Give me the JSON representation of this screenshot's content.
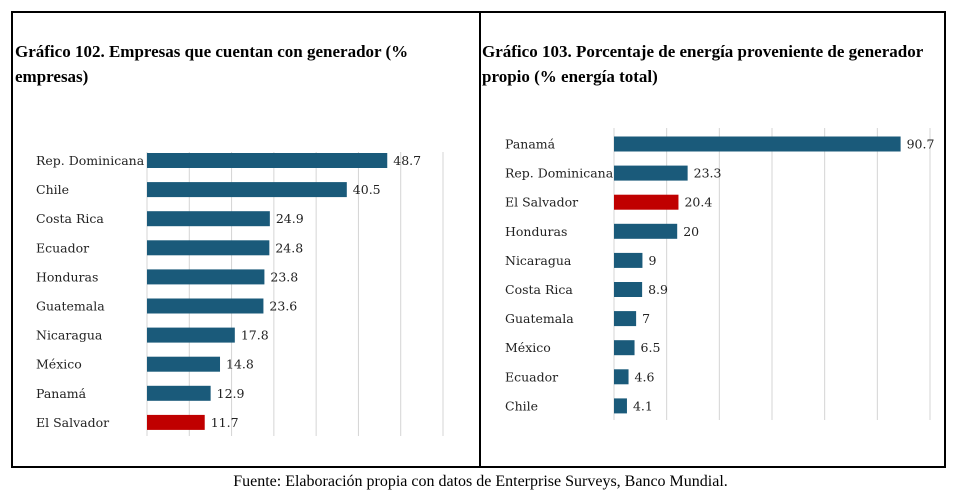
{
  "chart_data": [
    {
      "type": "bar",
      "orientation": "horizontal",
      "title": "Gráfico 102. Empresas que cuentan con generador (% empresas)",
      "categories": [
        "Rep. Dominicana",
        "Chile",
        "Costa Rica",
        "Ecuador",
        "Honduras",
        "Guatemala",
        "Nicaragua",
        "México",
        "Panamá",
        "El Salvador"
      ],
      "values": [
        48.7,
        40.5,
        24.9,
        24.8,
        23.8,
        23.6,
        17.8,
        14.8,
        12.9,
        11.7
      ],
      "value_labels": [
        "48.7",
        "40.5",
        "24.9",
        "24.8",
        "23.8",
        "23.6",
        "17.8",
        "14.8",
        "12.9",
        "11.7"
      ],
      "highlight": "El Salvador",
      "xlim": [
        0,
        60
      ],
      "grid": true,
      "xlabel": "",
      "ylabel": ""
    },
    {
      "type": "bar",
      "orientation": "horizontal",
      "title": "Gráfico 103. Porcentaje de energía proveniente de generador propio (% energía total)",
      "categories": [
        "Panamá",
        "Rep. Dominicana",
        "El Salvador",
        "Honduras",
        "Nicaragua",
        "Costa Rica",
        "Guatemala",
        "México",
        "Ecuador",
        "Chile"
      ],
      "values": [
        90.7,
        23.3,
        20.4,
        20,
        9,
        8.9,
        7,
        6.5,
        4.6,
        4.1
      ],
      "value_labels": [
        "90.7",
        "23.3",
        "20.4",
        "20",
        "9",
        "8.9",
        "7",
        "6.5",
        "4.6",
        "4.1"
      ],
      "highlight": "El Salvador",
      "xlim": [
        0,
        100
      ],
      "grid": true,
      "xlabel": "",
      "ylabel": ""
    }
  ],
  "colors": {
    "bar": "#1a5a7a",
    "highlight": "#c00000",
    "grid": "#d4d4d4"
  },
  "footer": "Fuente: Elaboración propia con datos de Enterprise Surveys, Banco Mundial."
}
